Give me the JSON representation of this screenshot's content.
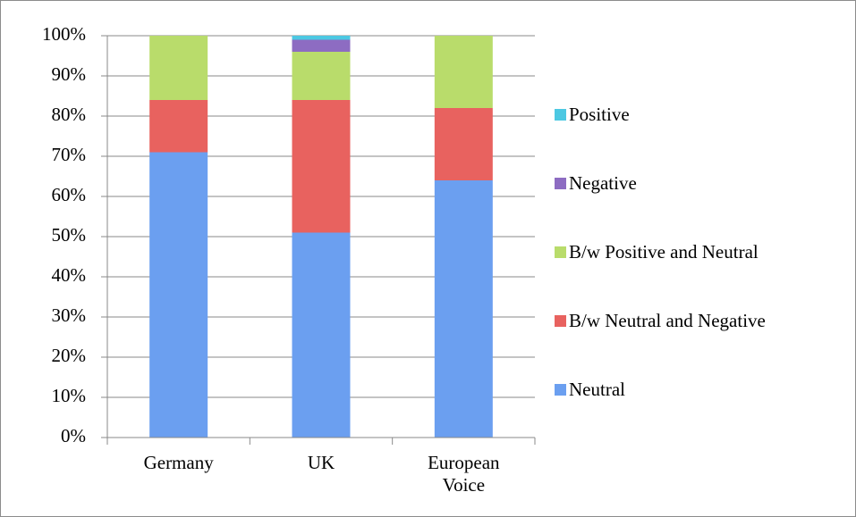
{
  "chart_data": {
    "type": "stacked_bar",
    "categories": [
      "Germany",
      "UK",
      "European Voice"
    ],
    "series": [
      {
        "name": "Neutral",
        "color": "#6b9ff0",
        "values": [
          71,
          51,
          64
        ]
      },
      {
        "name": "B/w Neutral and Negative",
        "color": "#e8625f",
        "values": [
          13,
          33,
          18
        ]
      },
      {
        "name": "B/w Positive and Neutral",
        "color": "#b9dc6b",
        "values": [
          16,
          12,
          18
        ]
      },
      {
        "name": "Negative",
        "color": "#8d6cc2",
        "values": [
          0,
          3,
          0
        ]
      },
      {
        "name": "Positive",
        "color": "#4cc8e2",
        "values": [
          0,
          1,
          0
        ]
      }
    ],
    "ylim": [
      0,
      100
    ],
    "yticks": [
      {
        "value": 0,
        "label": "0%"
      },
      {
        "value": 10,
        "label": "10%"
      },
      {
        "value": 20,
        "label": "20%"
      },
      {
        "value": 30,
        "label": "30%"
      },
      {
        "value": 40,
        "label": "40%"
      },
      {
        "value": 50,
        "label": "50%"
      },
      {
        "value": 60,
        "label": "60%"
      },
      {
        "value": 70,
        "label": "70%"
      },
      {
        "value": 80,
        "label": "80%"
      },
      {
        "value": 90,
        "label": "90%"
      },
      {
        "value": 100,
        "label": "100%"
      }
    ],
    "grid": true,
    "legend": "right"
  }
}
